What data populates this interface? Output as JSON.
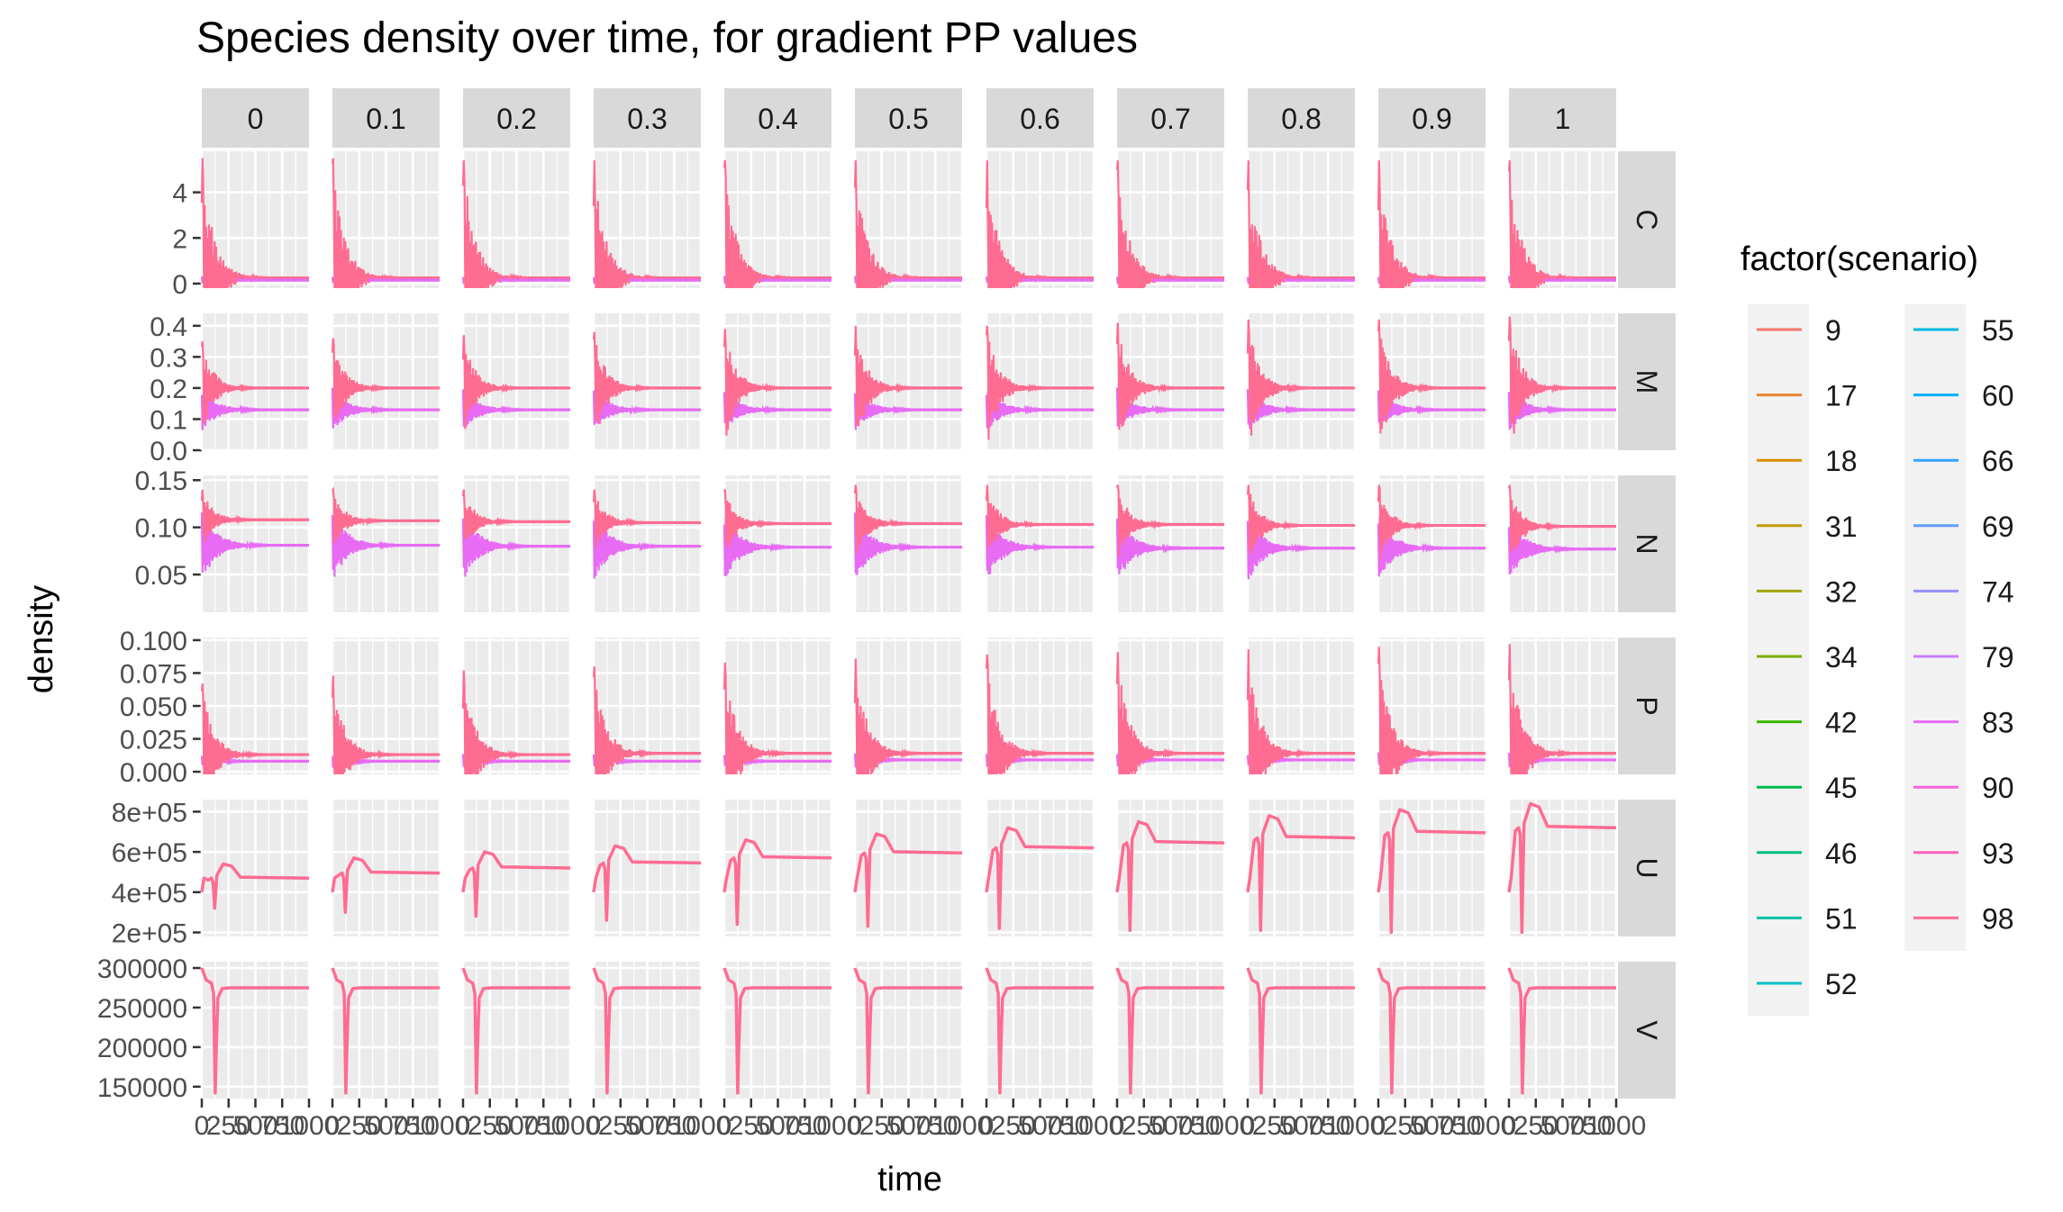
{
  "chart_data": {
    "type": "line",
    "title": "Species density over time, for gradient PP values",
    "xlabel": "time",
    "ylabel": "density",
    "legend": {
      "title": "factor(scenario)",
      "placement": "right",
      "entries": [
        "9",
        "17",
        "18",
        "31",
        "32",
        "34",
        "42",
        "45",
        "46",
        "51",
        "52",
        "55",
        "60",
        "66",
        "69",
        "74",
        "79",
        "83",
        "90",
        "93",
        "98"
      ],
      "colors": [
        "#F8766D",
        "#EA8331",
        "#D89000",
        "#C09B00",
        "#A3A500",
        "#7CAE00",
        "#39B600",
        "#00BB4E",
        "#00BF7D",
        "#00C1A3",
        "#00BFC4",
        "#00BAE0",
        "#00B0F6",
        "#35A2FF",
        "#619CFF",
        "#9590FF",
        "#C77CFF",
        "#E76BF3",
        "#FA62DB",
        "#FF62BC",
        "#FF6C91"
      ]
    },
    "facet_columns": [
      "0",
      "0.1",
      "0.2",
      "0.3",
      "0.4",
      "0.5",
      "0.6",
      "0.7",
      "0.8",
      "0.9",
      "1"
    ],
    "facet_rows": [
      "C",
      "M",
      "N",
      "P",
      "U",
      "V"
    ],
    "x_axis": {
      "range": [
        0,
        1000
      ],
      "ticks": [
        0,
        250,
        500,
        750,
        1000
      ],
      "tick_labels": [
        "0",
        "250",
        "500",
        "750",
        "1000"
      ]
    },
    "rows": [
      {
        "name": "C",
        "ylim": [
          -0.2,
          5.8
        ],
        "ticks": [
          0,
          2,
          4
        ],
        "tick_labels": [
          "0",
          "2",
          "4"
        ],
        "equilibrium_upper": [
          0.25,
          0.25,
          0.25,
          0.25,
          0.25,
          0.25,
          0.25,
          0.25,
          0.25,
          0.25,
          0.25
        ],
        "equilibrium_lower": [
          0.15,
          0.15,
          0.15,
          0.15,
          0.15,
          0.15,
          0.15,
          0.15,
          0.15,
          0.15,
          0.15
        ],
        "peak": [
          5.5,
          5.5,
          5.4,
          5.4,
          5.4,
          5.4,
          5.4,
          5.4,
          5.4,
          5.4,
          5.4
        ]
      },
      {
        "name": "M",
        "ylim": [
          0,
          0.44
        ],
        "ticks": [
          0.0,
          0.1,
          0.2,
          0.3,
          0.4
        ],
        "tick_labels": [
          "0.0",
          "0.1",
          "0.2",
          "0.3",
          "0.4"
        ],
        "equilibrium_upper": [
          0.2,
          0.2,
          0.2,
          0.2,
          0.2,
          0.2,
          0.2,
          0.2,
          0.2,
          0.2,
          0.2
        ],
        "equilibrium_lower": [
          0.13,
          0.13,
          0.13,
          0.13,
          0.13,
          0.13,
          0.13,
          0.13,
          0.13,
          0.13,
          0.13
        ],
        "peak": [
          0.35,
          0.36,
          0.37,
          0.38,
          0.39,
          0.4,
          0.4,
          0.41,
          0.42,
          0.42,
          0.43
        ]
      },
      {
        "name": "N",
        "ylim": [
          0.01,
          0.155
        ],
        "ticks": [
          0.05,
          0.1,
          0.15
        ],
        "tick_labels": [
          "0.05",
          "0.10",
          "0.15"
        ],
        "equilibrium_upper": [
          0.108,
          0.107,
          0.106,
          0.105,
          0.104,
          0.104,
          0.103,
          0.103,
          0.102,
          0.102,
          0.101
        ],
        "equilibrium_lower": [
          0.081,
          0.081,
          0.08,
          0.08,
          0.079,
          0.079,
          0.079,
          0.078,
          0.078,
          0.078,
          0.077
        ],
        "peak": [
          0.14,
          0.14,
          0.14,
          0.14,
          0.14,
          0.145,
          0.145,
          0.145,
          0.145,
          0.145,
          0.145
        ]
      },
      {
        "name": "P",
        "ylim": [
          -0.002,
          0.102
        ],
        "ticks": [
          0.0,
          0.025,
          0.05,
          0.075,
          0.1
        ],
        "tick_labels": [
          "0.000",
          "0.025",
          "0.050",
          "0.075",
          "0.100"
        ],
        "equilibrium_upper": [
          0.013,
          0.013,
          0.013,
          0.014,
          0.014,
          0.014,
          0.014,
          0.014,
          0.014,
          0.014,
          0.014
        ],
        "equilibrium_lower": [
          0.008,
          0.008,
          0.008,
          0.008,
          0.008,
          0.009,
          0.009,
          0.009,
          0.009,
          0.009,
          0.009
        ],
        "peak": [
          0.067,
          0.073,
          0.077,
          0.08,
          0.083,
          0.086,
          0.089,
          0.091,
          0.093,
          0.095,
          0.097
        ]
      },
      {
        "name": "U",
        "ylim": [
          180000,
          860000
        ],
        "ticks": [
          200000,
          400000,
          600000,
          800000
        ],
        "tick_labels": [
          "2e+05",
          "4e+05",
          "6e+05",
          "8e+05"
        ],
        "equilibrium": [
          470000,
          495000,
          520000,
          545000,
          570000,
          595000,
          620000,
          645000,
          670000,
          695000,
          720000
        ],
        "overshoot": [
          540000,
          570000,
          600000,
          630000,
          660000,
          690000,
          720000,
          750000,
          780000,
          810000,
          840000
        ],
        "dip": [
          320000,
          300000,
          280000,
          260000,
          240000,
          230000,
          220000,
          210000,
          210000,
          200000,
          200000
        ]
      },
      {
        "name": "V",
        "ylim": [
          135000,
          308000
        ],
        "ticks": [
          150000,
          200000,
          250000,
          300000
        ],
        "tick_labels": [
          "150000",
          "200000",
          "250000",
          "300000"
        ],
        "equilibrium": [
          275000,
          275000,
          275000,
          275000,
          275000,
          275000,
          275000,
          275000,
          275000,
          275000,
          275000
        ],
        "dip": [
          142000,
          142000,
          142000,
          142000,
          142000,
          142000,
          142000,
          142000,
          142000,
          142000,
          142000
        ]
      }
    ]
  }
}
